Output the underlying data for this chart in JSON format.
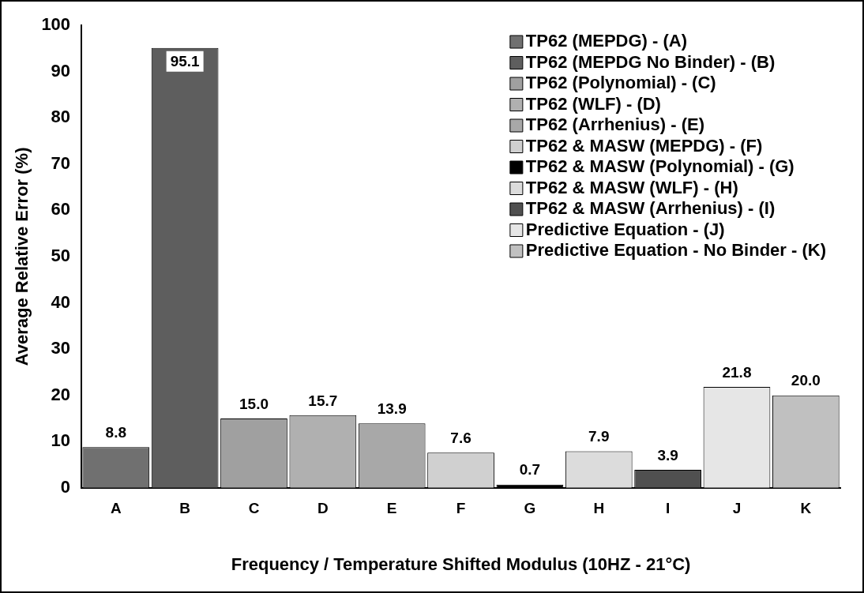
{
  "chart_data": {
    "type": "bar",
    "xlabel": "Frequency / Temperature Shifted Modulus (10HZ - 21°C)",
    "ylabel": "Average Relative Error (%)",
    "categories": [
      "A",
      "B",
      "C",
      "D",
      "E",
      "F",
      "G",
      "H",
      "I",
      "J",
      "K"
    ],
    "series": [
      {
        "name": "TP62 (MEPDG) - (A)",
        "color": "#707070",
        "values": [
          8.8,
          null,
          null,
          null,
          null,
          null,
          null,
          null,
          null,
          null,
          null
        ],
        "value_labels": [
          "8.8",
          null,
          null,
          null,
          null,
          null,
          null,
          null,
          null,
          null,
          null
        ]
      },
      {
        "name": "TP62 (MEPDG No Binder) - (B)",
        "color": "#5e5e5e",
        "values": [
          null,
          95.1,
          null,
          null,
          null,
          null,
          null,
          null,
          null,
          null,
          null
        ],
        "value_labels": [
          null,
          "95.1",
          null,
          null,
          null,
          null,
          null,
          null,
          null,
          null,
          null
        ]
      },
      {
        "name": "TP62 (Polynomial) - (C)",
        "color": "#a0a0a0",
        "values": [
          null,
          null,
          15.0,
          null,
          null,
          null,
          null,
          null,
          null,
          null,
          null
        ],
        "value_labels": [
          null,
          null,
          "15.0",
          null,
          null,
          null,
          null,
          null,
          null,
          null,
          null
        ]
      },
      {
        "name": "TP62 (WLF) - (D)",
        "color": "#b0b0b0",
        "values": [
          null,
          null,
          null,
          15.7,
          null,
          null,
          null,
          null,
          null,
          null,
          null
        ],
        "value_labels": [
          null,
          null,
          null,
          "15.7",
          null,
          null,
          null,
          null,
          null,
          null,
          null
        ]
      },
      {
        "name": "TP62 (Arrhenius) - (E)",
        "color": "#a8a8a8",
        "values": [
          null,
          null,
          null,
          null,
          13.9,
          null,
          null,
          null,
          null,
          null,
          null
        ],
        "value_labels": [
          null,
          null,
          null,
          null,
          "13.9",
          null,
          null,
          null,
          null,
          null,
          null
        ]
      },
      {
        "name": "TP62 & MASW (MEPDG) - (F)",
        "color": "#d0d0d0",
        "values": [
          null,
          null,
          null,
          null,
          null,
          7.6,
          null,
          null,
          null,
          null,
          null
        ],
        "value_labels": [
          null,
          null,
          null,
          null,
          null,
          "7.6",
          null,
          null,
          null,
          null,
          null
        ]
      },
      {
        "name": "TP62 & MASW (Polynomial) - (G)",
        "color": "#000000",
        "values": [
          null,
          null,
          null,
          null,
          null,
          null,
          0.7,
          null,
          null,
          null,
          null
        ],
        "value_labels": [
          null,
          null,
          null,
          null,
          null,
          null,
          "0.7",
          null,
          null,
          null,
          null
        ]
      },
      {
        "name": "TP62 & MASW (WLF) - (H)",
        "color": "#dcdcdc",
        "values": [
          null,
          null,
          null,
          null,
          null,
          null,
          null,
          7.9,
          null,
          null,
          null
        ],
        "value_labels": [
          null,
          null,
          null,
          null,
          null,
          null,
          null,
          "7.9",
          null,
          null,
          null
        ]
      },
      {
        "name": "TP62 & MASW (Arrhenius) - (I)",
        "color": "#505050",
        "values": [
          null,
          null,
          null,
          null,
          null,
          null,
          null,
          null,
          3.9,
          null,
          null
        ],
        "value_labels": [
          null,
          null,
          null,
          null,
          null,
          null,
          null,
          null,
          "3.9",
          null,
          null
        ]
      },
      {
        "name": "Predictive Equation - (J)",
        "color": "#e6e6e6",
        "values": [
          null,
          null,
          null,
          null,
          null,
          null,
          null,
          null,
          null,
          21.8,
          null
        ],
        "value_labels": [
          null,
          null,
          null,
          null,
          null,
          null,
          null,
          null,
          null,
          "21.8",
          null
        ]
      },
      {
        "name": "Predictive Equation - No Binder - (K)",
        "color": "#c0c0c0",
        "values": [
          null,
          null,
          null,
          null,
          null,
          null,
          null,
          null,
          null,
          null,
          20.0
        ],
        "value_labels": [
          null,
          null,
          null,
          null,
          null,
          null,
          null,
          null,
          null,
          null,
          "20.0"
        ]
      }
    ],
    "ylim": [
      0,
      100
    ],
    "yticks": [
      0,
      10,
      20,
      30,
      40,
      50,
      60,
      70,
      80,
      90,
      100
    ],
    "grid": false,
    "legend": "top right"
  }
}
